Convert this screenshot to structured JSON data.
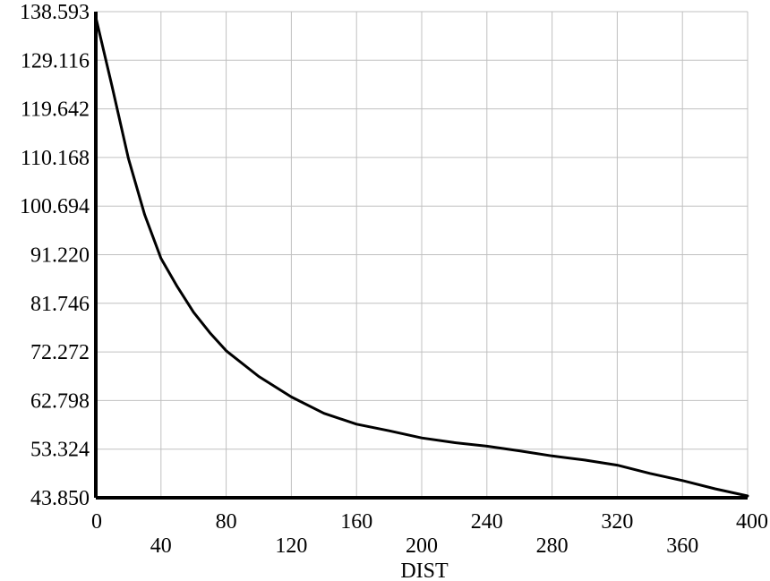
{
  "chart_data": {
    "type": "line",
    "title": "",
    "xlabel": "DIST",
    "ylabel": "",
    "xlim": [
      0,
      400
    ],
    "ylim": [
      43.85,
      138.593
    ],
    "grid": true,
    "x_ticks": [
      "0",
      "40",
      "80",
      "120",
      "160",
      "200",
      "240",
      "280",
      "320",
      "360",
      "400"
    ],
    "y_ticks": [
      "138.593",
      "129.116",
      "119.642",
      "110.168",
      "100.694",
      "91.220",
      "81.746",
      "72.272",
      "62.798",
      "53.324",
      "43.850"
    ],
    "series": [
      {
        "x": [
          0,
          10,
          20,
          30,
          40,
          50,
          60,
          70,
          80,
          100,
          120,
          140,
          160,
          180,
          200,
          220,
          240,
          260,
          280,
          300,
          320,
          340,
          360,
          380,
          400
        ],
        "y": [
          137.5,
          124,
          110,
          99,
          90.5,
          85,
          80,
          76,
          72.5,
          67.5,
          63.5,
          60.3,
          58.2,
          56.9,
          55.5,
          54.6,
          53.9,
          53,
          52,
          51.2,
          50.2,
          48.6,
          47.2,
          45.6,
          44.2
        ],
        "color": "#000000"
      }
    ]
  }
}
